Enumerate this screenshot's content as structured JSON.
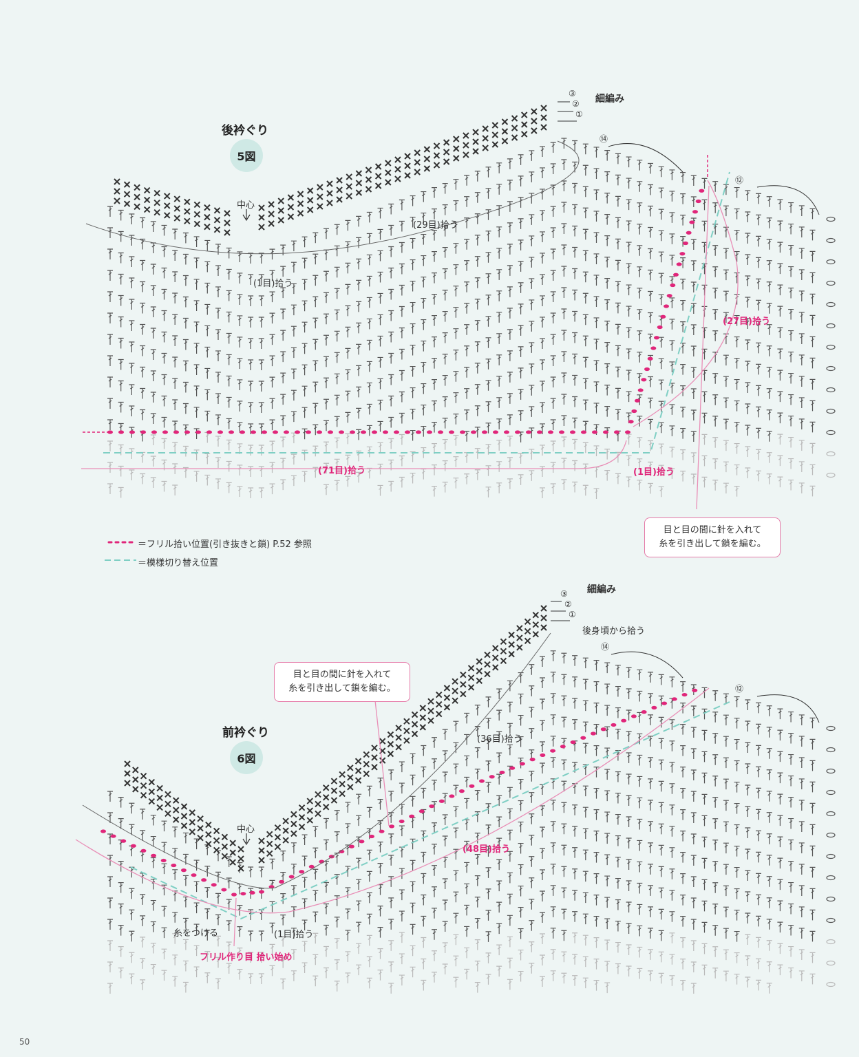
{
  "diagram5": {
    "title": "後衿ぐり",
    "figure": "5図",
    "sc_label": "細編み",
    "row_markers": [
      "③",
      "②",
      "①"
    ],
    "row14": "⑭",
    "row12": "⑫",
    "center": "中心",
    "pick29": "(29目)拾う",
    "pick1": "(1目)拾う",
    "pick27": "(27目)拾う",
    "pick71": "(71目)拾う",
    "pick1b": "(1目)拾う",
    "callout": [
      "目と目の間に針を入れて",
      "糸を引き出して鎖を編む。"
    ]
  },
  "legend": {
    "frill": "＝フリル拾い位置(引き抜きと鎖)  P.52 参照",
    "switch": "＝模様切り替え位置"
  },
  "diagram6": {
    "title": "前衿ぐり",
    "figure": "6図",
    "sc_label": "細編み",
    "row_markers": [
      "③",
      "②",
      "①"
    ],
    "row14": "⑭",
    "row12": "⑫",
    "back_pick": "後身頃から拾う",
    "center": "中心",
    "pick36": "(36目)拾う",
    "pick48": "(48目)拾う",
    "pick1": "(1目)拾う",
    "attach": "糸をつける",
    "frill_start": "フリル作り目 拾い始め",
    "callout": [
      "目と目の間に針を入れて",
      "糸を引き出して鎖を編む。"
    ]
  },
  "page_number": "50",
  "colors": {
    "pink": "#e0267a",
    "teal": "#7fcfc4",
    "stitch": "#555555",
    "light": "#b9b9b9"
  }
}
